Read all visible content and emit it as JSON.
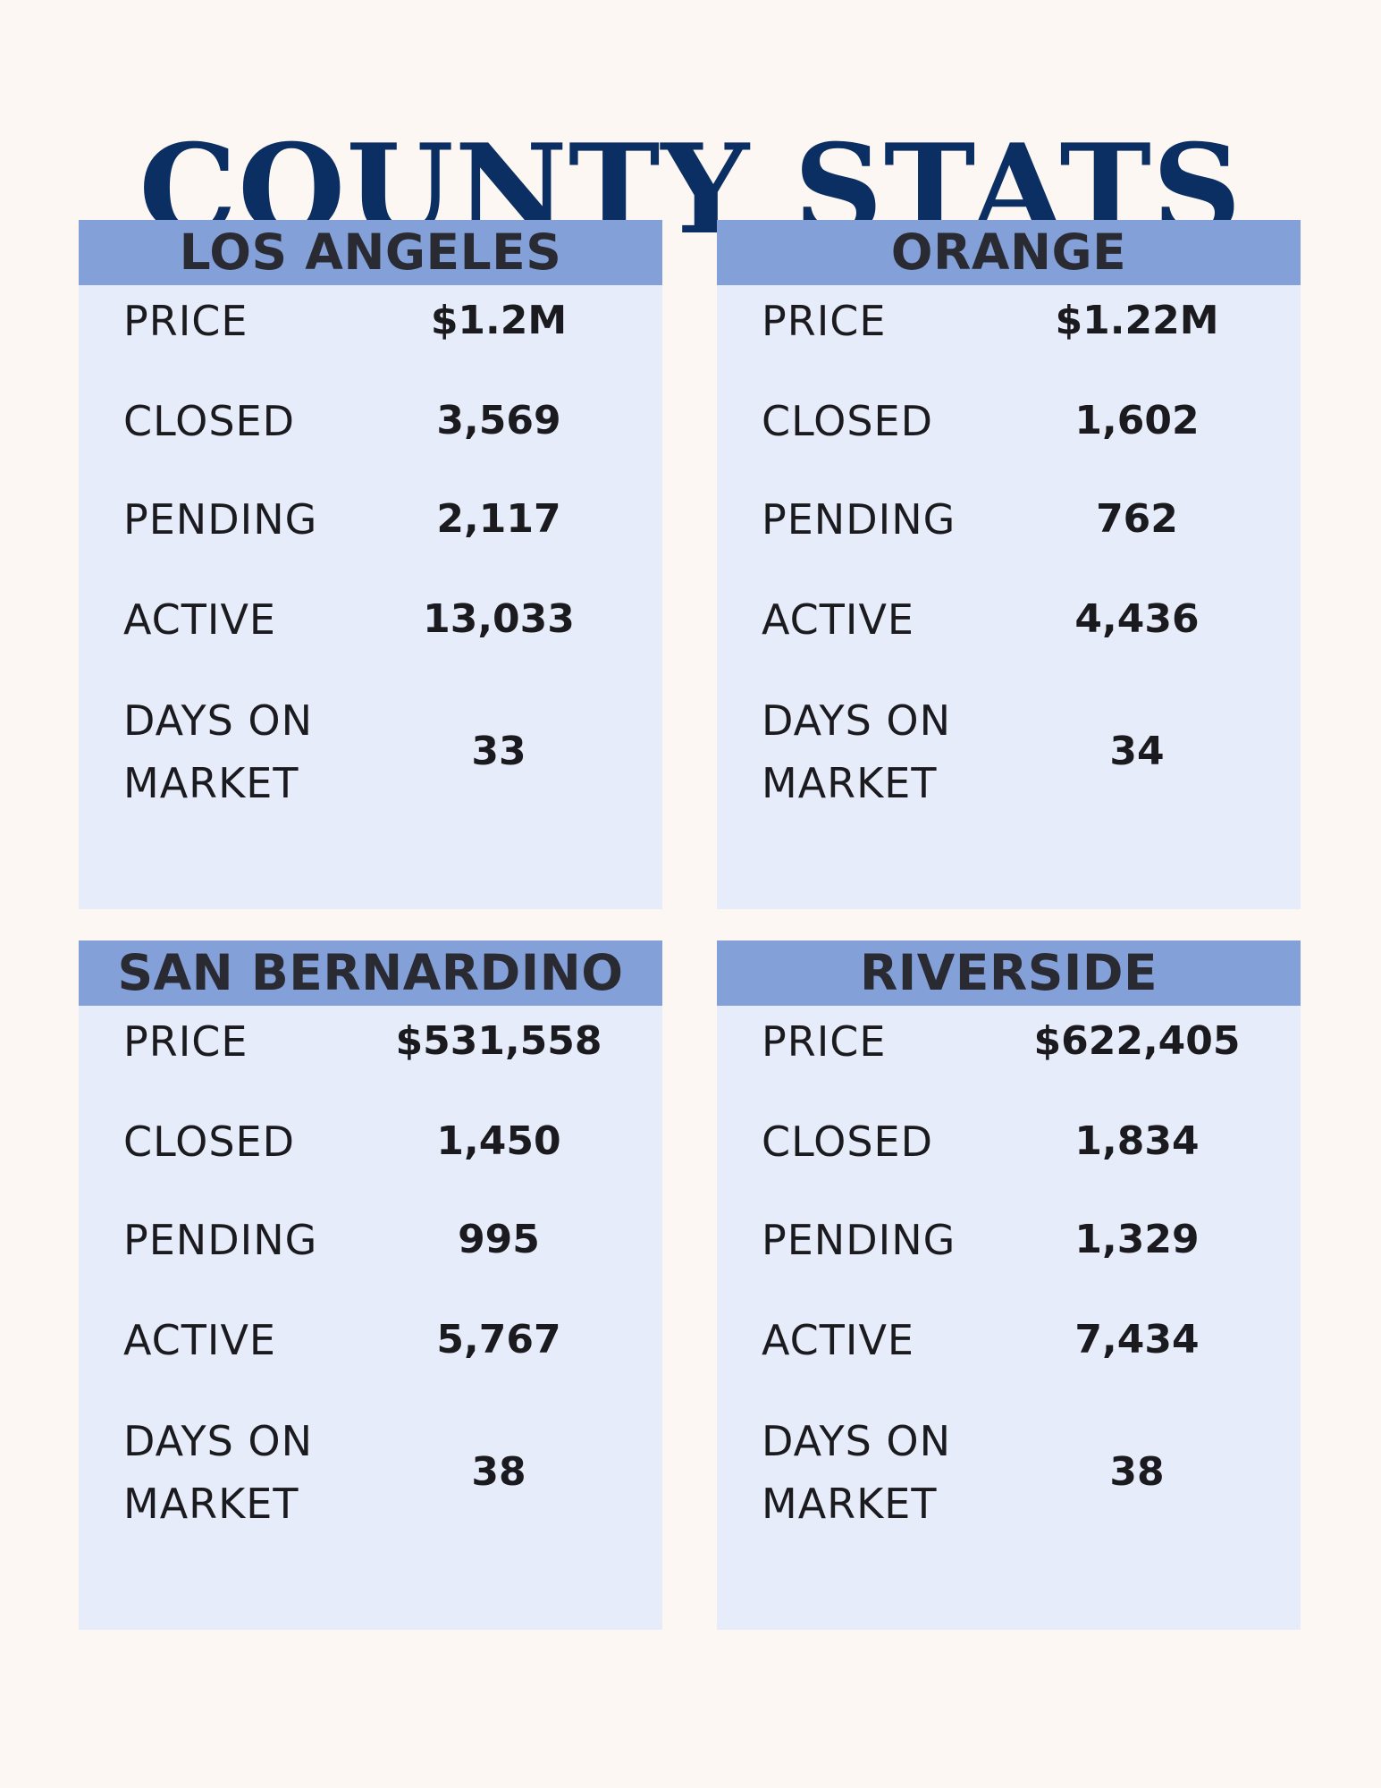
{
  "title": "COUNTY STATS",
  "counties": [
    {
      "name": "LOS ANGELES",
      "labels": {
        "price": "PRICE",
        "closed": "CLOSED",
        "pending": "PENDING",
        "active": "ACTIVE",
        "days_line1": "DAYS ON",
        "days_line2": "MARKET"
      },
      "price": "$1.2M",
      "closed": "3,569",
      "pending": "2,117",
      "active": "13,033",
      "days_on_market": "33"
    },
    {
      "name": "ORANGE",
      "labels": {
        "price": "PRICE",
        "closed": "CLOSED",
        "pending": "PENDING",
        "active": "ACTIVE",
        "days_line1": "DAYS ON",
        "days_line2": "MARKET"
      },
      "price": "$1.22M",
      "closed": "1,602",
      "pending": "762",
      "active": "4,436",
      "days_on_market": "34"
    },
    {
      "name": "SAN BERNARDINO",
      "labels": {
        "price": "PRICE",
        "closed": "CLOSED",
        "pending": "PENDING",
        "active": "ACTIVE",
        "days_line1": "DAYS ON",
        "days_line2": "MARKET"
      },
      "price": "$531,558",
      "closed": "1,450",
      "pending": "995",
      "active": "5,767",
      "days_on_market": "38"
    },
    {
      "name": "RIVERSIDE",
      "labels": {
        "price": "PRICE",
        "closed": "CLOSED",
        "pending": "PENDING",
        "active": "ACTIVE",
        "days_line1": "DAYS ON",
        "days_line2": "MARKET"
      },
      "price": "$622,405",
      "closed": "1,834",
      "pending": "1,329",
      "active": "7,434",
      "days_on_market": "38"
    }
  ]
}
